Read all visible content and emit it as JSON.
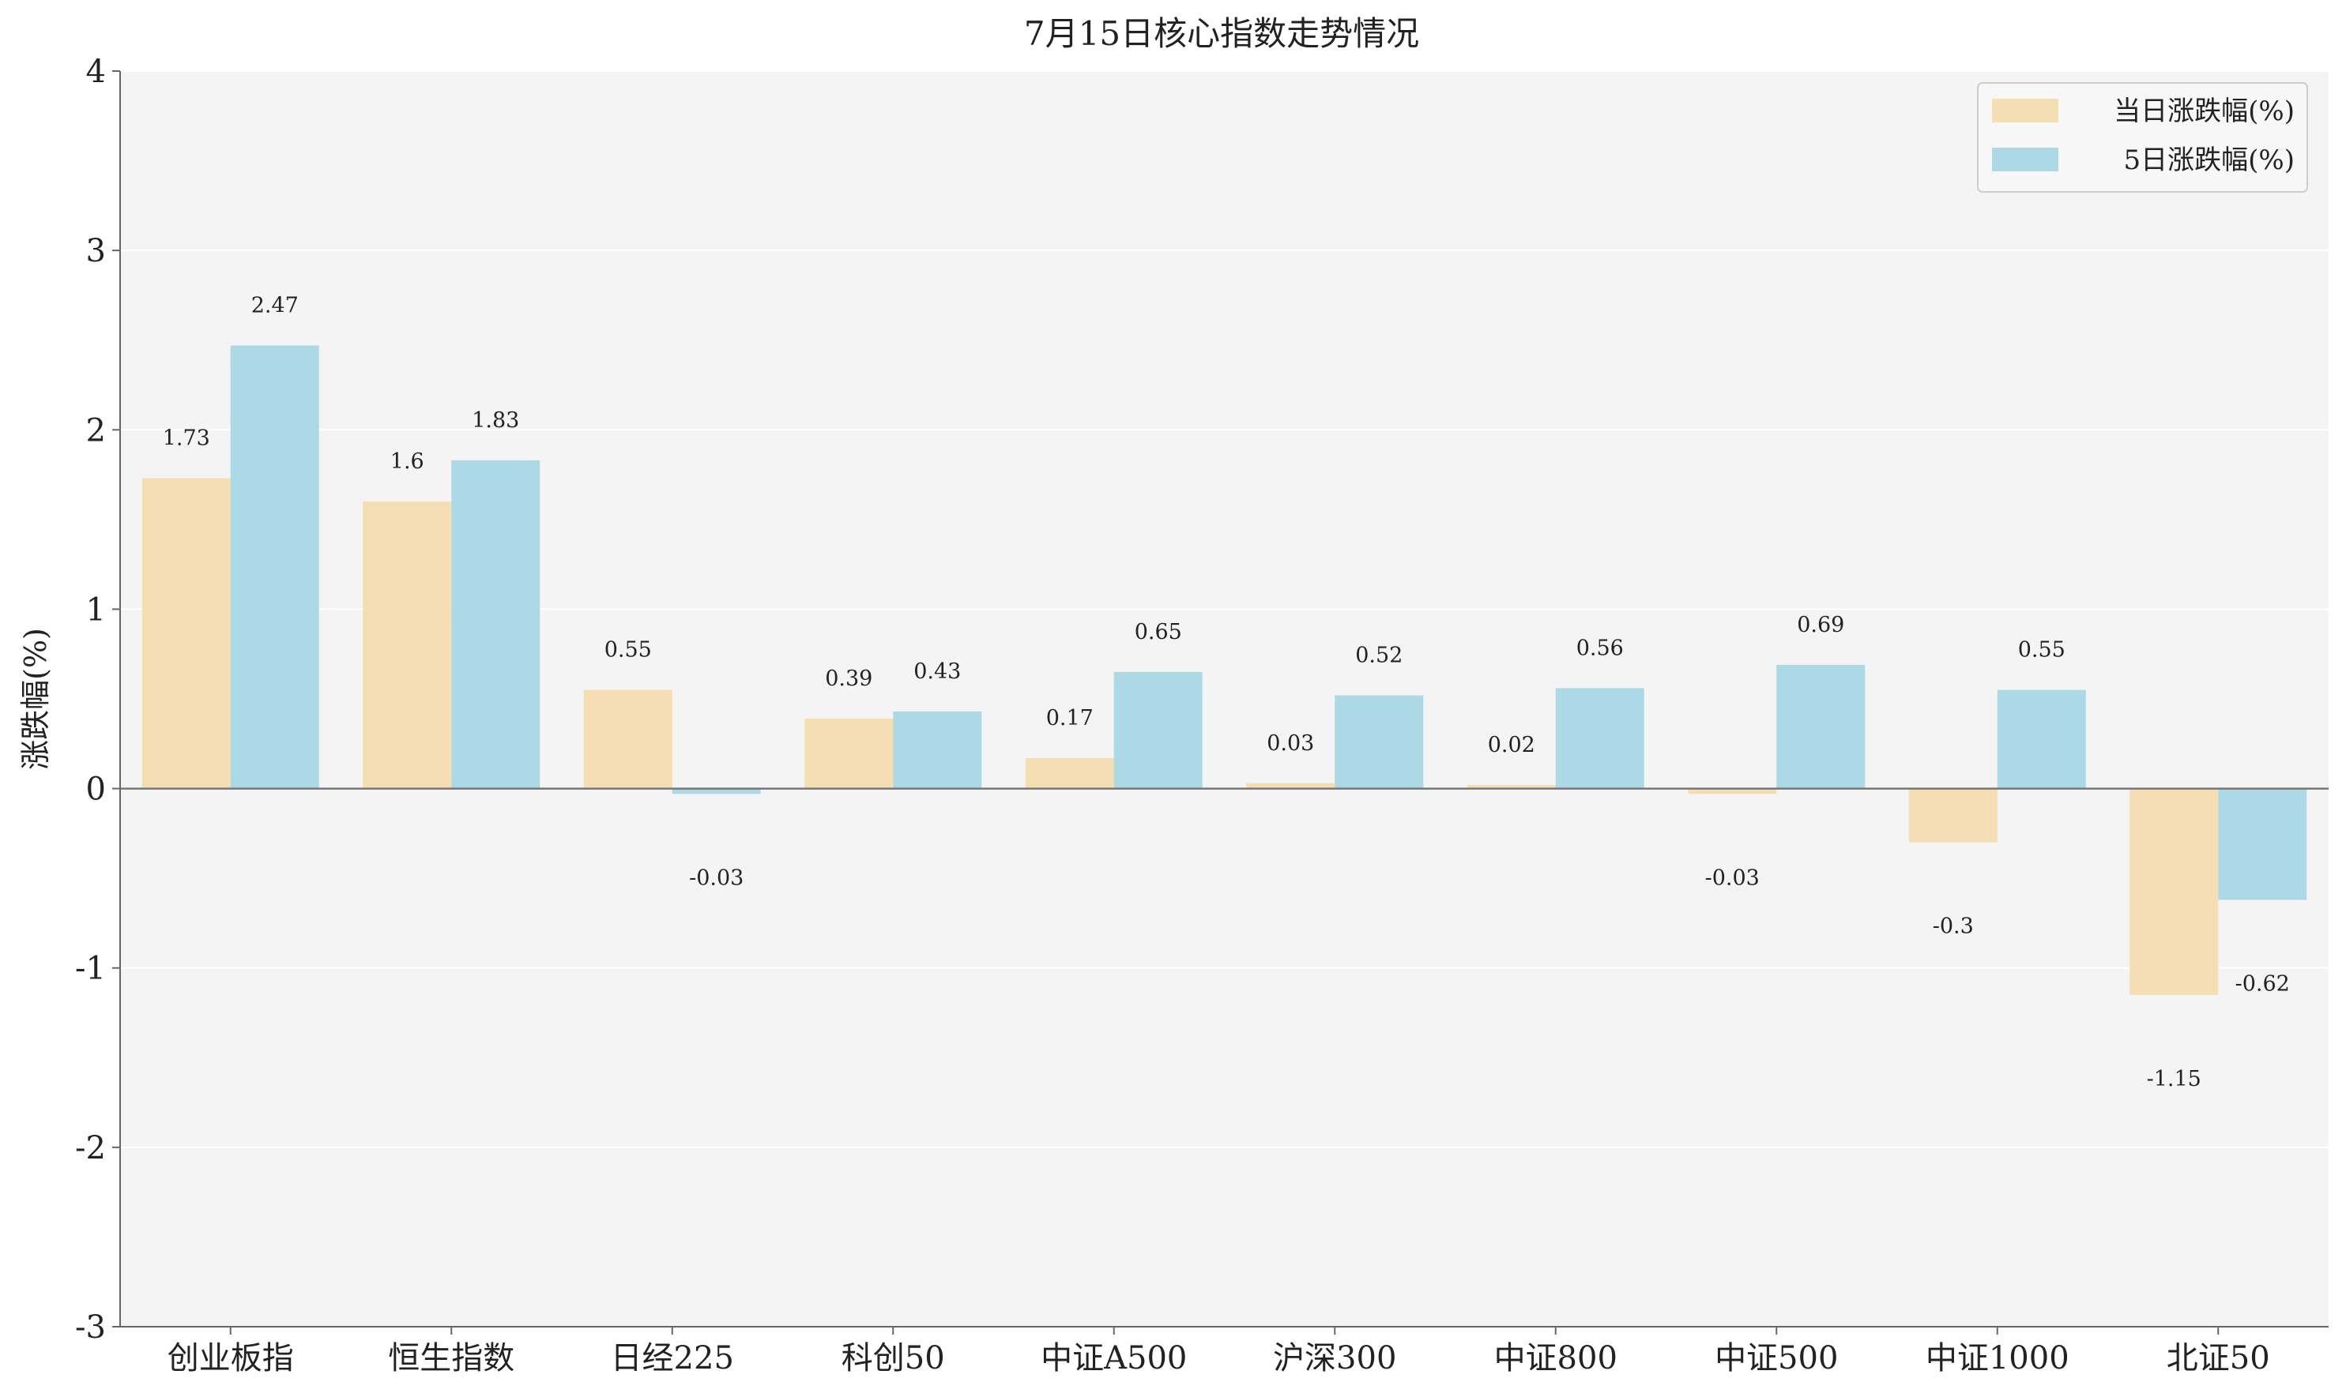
{
  "chart_data": {
    "type": "bar",
    "title": "7月15日核心指数走势情况",
    "xlabel": "",
    "ylabel": "涨跌幅(%)",
    "ylim": [
      -3,
      4
    ],
    "yticks": [
      -3,
      -2,
      -1,
      0,
      1,
      2,
      3,
      4
    ],
    "grid": true,
    "legend_position": "top-right",
    "categories": [
      "创业板指",
      "恒生指数",
      "日经225",
      "科创50",
      "中证A500",
      "沪深300",
      "中证800",
      "中证500",
      "中证1000",
      "北证50"
    ],
    "series": [
      {
        "name": "当日涨跌幅(%)",
        "color": "#f5deb3",
        "values": [
          1.73,
          1.6,
          0.55,
          0.39,
          0.17,
          0.03,
          0.02,
          -0.03,
          -0.3,
          -1.15
        ],
        "labels": [
          "1.73",
          "1.6",
          "0.55",
          "0.39",
          "0.17",
          "0.03",
          "0.02",
          "-0.03",
          "-0.3",
          "-1.15"
        ]
      },
      {
        "name": "5日涨跌幅(%)",
        "color": "#add8e6",
        "values": [
          2.47,
          1.83,
          -0.03,
          0.43,
          0.65,
          0.52,
          0.56,
          0.69,
          0.55,
          -0.62
        ],
        "labels": [
          "2.47",
          "1.83",
          "-0.03",
          "0.43",
          "0.65",
          "0.52",
          "0.56",
          "0.69",
          "0.55",
          "-0.62"
        ]
      }
    ]
  }
}
